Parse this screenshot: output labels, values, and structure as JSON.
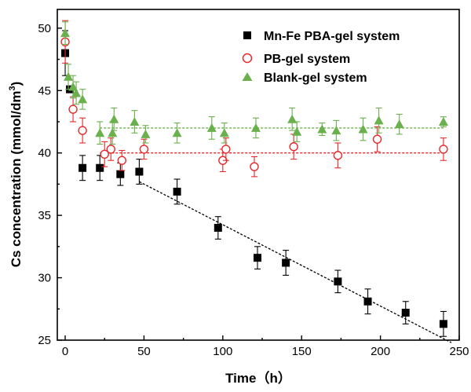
{
  "chart_data": {
    "type": "scatter",
    "xlabel": "Time（h）",
    "ylabel_main": "Cs concentration (mmol/dm",
    "ylabel_sup": "3",
    "ylabel_close": ")",
    "xlim": [
      -5,
      250
    ],
    "ylim": [
      25,
      51.5
    ],
    "x_ticks": [
      "0",
      "50",
      "100",
      "150",
      "200",
      "250"
    ],
    "y_ticks": [
      "25",
      "30",
      "35",
      "40",
      "45",
      "50"
    ],
    "legend_position": "top-right",
    "series": [
      {
        "name": "Mn-Fe PBA-gel system",
        "marker": "square-filled",
        "color": "#000000",
        "points": [
          {
            "x": 0,
            "y": 48.0,
            "err": 1.8
          },
          {
            "x": 3,
            "y": 45.1,
            "err": 0.0
          },
          {
            "x": 11,
            "y": 38.8,
            "err": 1.0
          },
          {
            "x": 22,
            "y": 38.8,
            "err": 1.0
          },
          {
            "x": 35,
            "y": 38.3,
            "err": 0.9
          },
          {
            "x": 47,
            "y": 38.5,
            "err": 1.0
          },
          {
            "x": 71,
            "y": 36.9,
            "err": 1.0
          },
          {
            "x": 97,
            "y": 34.0,
            "err": 0.9
          },
          {
            "x": 122,
            "y": 31.6,
            "err": 0.9
          },
          {
            "x": 140,
            "y": 31.2,
            "err": 1.0
          },
          {
            "x": 173,
            "y": 29.7,
            "err": 0.9
          },
          {
            "x": 192,
            "y": 28.1,
            "err": 1.0
          },
          {
            "x": 216,
            "y": 27.2,
            "err": 0.9
          },
          {
            "x": 240,
            "y": 26.3,
            "err": 1.0
          }
        ]
      },
      {
        "name": "PB-gel system",
        "marker": "circle-open",
        "color": "#e8282b",
        "points": [
          {
            "x": 0,
            "y": 48.9,
            "err": 1.7
          },
          {
            "x": 5,
            "y": 43.5,
            "err": 1.0
          },
          {
            "x": 11,
            "y": 41.8,
            "err": 1.0
          },
          {
            "x": 25,
            "y": 39.9,
            "err": 1.0
          },
          {
            "x": 29,
            "y": 40.3,
            "err": 0.9
          },
          {
            "x": 36,
            "y": 39.4,
            "err": 0.8
          },
          {
            "x": 50,
            "y": 40.3,
            "err": 0.8
          },
          {
            "x": 100,
            "y": 39.4,
            "err": 0.9
          },
          {
            "x": 102,
            "y": 40.3,
            "err": 0.9
          },
          {
            "x": 120,
            "y": 38.9,
            "err": 0.8
          },
          {
            "x": 145,
            "y": 40.5,
            "err": 1.0
          },
          {
            "x": 173,
            "y": 39.8,
            "err": 1.0
          },
          {
            "x": 198,
            "y": 41.1,
            "err": 1.0
          },
          {
            "x": 240,
            "y": 40.3,
            "err": 0.9
          }
        ]
      },
      {
        "name": "Blank-gel system",
        "marker": "triangle-filled",
        "color": "#6ab04c",
        "points": [
          {
            "x": 0,
            "y": 49.6,
            "err": 0.9
          },
          {
            "x": 2,
            "y": 46.1,
            "err": 1.0
          },
          {
            "x": 5,
            "y": 45.3,
            "err": 0.9
          },
          {
            "x": 7,
            "y": 44.8,
            "err": 0.9
          },
          {
            "x": 11,
            "y": 44.3,
            "err": 0.8
          },
          {
            "x": 22,
            "y": 41.6,
            "err": 0.9
          },
          {
            "x": 30,
            "y": 41.6,
            "err": 0.9
          },
          {
            "x": 31,
            "y": 42.7,
            "err": 0.9
          },
          {
            "x": 44,
            "y": 42.5,
            "err": 0.9
          },
          {
            "x": 51,
            "y": 41.5,
            "err": 0.7
          },
          {
            "x": 71,
            "y": 41.6,
            "err": 0.8
          },
          {
            "x": 93,
            "y": 42.0,
            "err": 0.9
          },
          {
            "x": 101,
            "y": 41.6,
            "err": 0.8
          },
          {
            "x": 121,
            "y": 42.0,
            "err": 0.8
          },
          {
            "x": 144,
            "y": 42.7,
            "err": 0.9
          },
          {
            "x": 147,
            "y": 41.7,
            "err": 0.8
          },
          {
            "x": 163,
            "y": 41.9,
            "err": 0.5
          },
          {
            "x": 172,
            "y": 41.8,
            "err": 0.8
          },
          {
            "x": 189,
            "y": 41.9,
            "err": 0.9
          },
          {
            "x": 199,
            "y": 42.6,
            "err": 1.0
          },
          {
            "x": 212,
            "y": 42.3,
            "err": 0.8
          },
          {
            "x": 240,
            "y": 42.5,
            "err": 0.4
          }
        ]
      }
    ],
    "reference_lines": [
      {
        "kind": "dotted",
        "color": "#6ab04c",
        "x1": 22,
        "y1": 42.0,
        "x2": 240,
        "y2": 42.0
      },
      {
        "kind": "dotted",
        "color": "#e8282b",
        "x1": 22,
        "y1": 40.0,
        "x2": 240,
        "y2": 40.0
      },
      {
        "kind": "dotted",
        "color": "#000000",
        "x1": 47,
        "y1": 37.7,
        "x2": 245,
        "y2": 24.8
      }
    ]
  }
}
